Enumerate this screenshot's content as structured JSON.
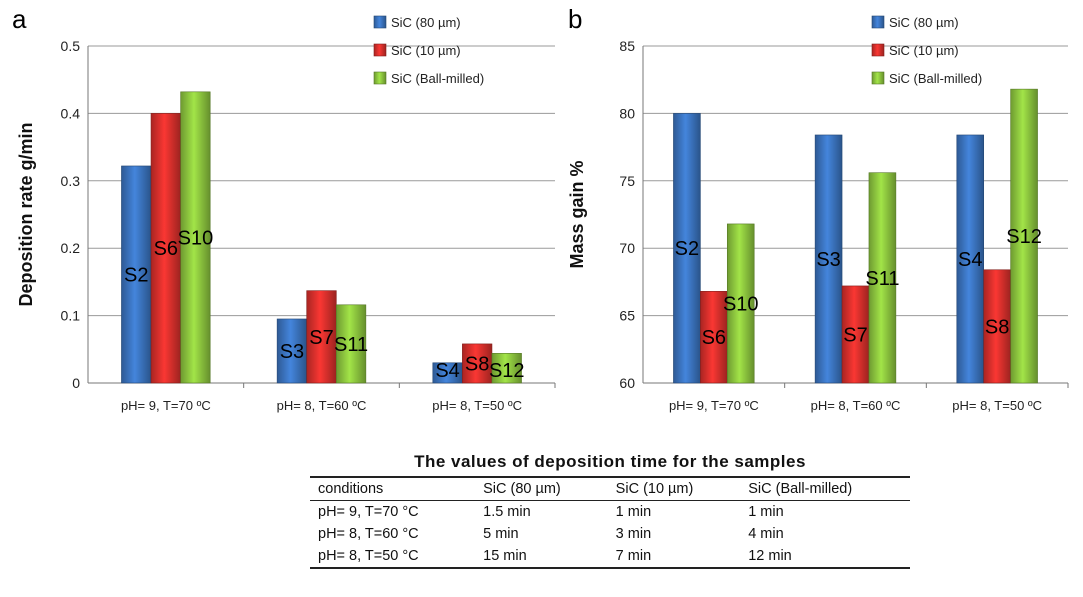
{
  "chart_data": [
    {
      "panel_label": "a",
      "type": "bar",
      "ylabel": "Deposition rate g/min",
      "ylim": [
        0,
        0.5
      ],
      "yticks": [
        "0",
        "0.1",
        "0.2",
        "0.3",
        "0.4",
        "0.5"
      ],
      "grid": true,
      "legend_position": "top-right",
      "categories": [
        "pH= 9, T=70 ºC",
        "pH= 8, T=60 ºC",
        "pH= 8, T=50 ºC"
      ],
      "series": [
        {
          "name": "SiC (80 µm)",
          "color": "#3b74bf",
          "values": [
            0.322,
            0.095,
            0.03
          ],
          "labels": [
            "S2",
            "S3",
            "S4"
          ]
        },
        {
          "name": "SiC (10 µm)",
          "color": "#d9302c",
          "values": [
            0.4,
            0.137,
            0.058
          ],
          "labels": [
            "S6",
            "S7",
            "S8"
          ]
        },
        {
          "name": "SiC (Ball-milled)",
          "color": "#8dc63f",
          "values": [
            0.432,
            0.116,
            0.044
          ],
          "labels": [
            "S10",
            "S11",
            "S12"
          ]
        }
      ]
    },
    {
      "panel_label": "b",
      "type": "bar",
      "ylabel": "Mass gain %",
      "ylim": [
        60,
        85
      ],
      "yticks": [
        "60",
        "65",
        "70",
        "75",
        "80",
        "85"
      ],
      "grid": true,
      "legend_position": "top-right",
      "categories": [
        "pH= 9, T=70 ºC",
        "pH= 8, T=60 ºC",
        "pH= 8, T=50 ºC"
      ],
      "series": [
        {
          "name": "SiC (80 µm)",
          "color": "#3b74bf",
          "values": [
            80.0,
            78.4,
            78.4
          ],
          "labels": [
            "S2",
            "S3",
            "S4"
          ]
        },
        {
          "name": "SiC (10 µm)",
          "color": "#d9302c",
          "values": [
            66.8,
            67.2,
            68.4
          ],
          "labels": [
            "S6",
            "S7",
            "S8"
          ]
        },
        {
          "name": "SiC (Ball-milled)",
          "color": "#8dc63f",
          "values": [
            71.8,
            75.6,
            81.8
          ],
          "labels": [
            "S10",
            "S11",
            "S12"
          ]
        }
      ]
    }
  ],
  "table": {
    "title": "The values of deposition time for the samples",
    "headers": [
      "conditions",
      "SiC (80 µm)",
      "SiC (10 µm)",
      "SiC (Ball-milled)"
    ],
    "rows": [
      [
        "pH= 9, T=70 °C",
        "1.5 min",
        "1 min",
        "1 min"
      ],
      [
        "pH= 8, T=60 °C",
        "5 min",
        "3 min",
        "4 min"
      ],
      [
        "pH= 8, T=50 °C",
        "15 min",
        "7 min",
        "12 min"
      ]
    ]
  }
}
